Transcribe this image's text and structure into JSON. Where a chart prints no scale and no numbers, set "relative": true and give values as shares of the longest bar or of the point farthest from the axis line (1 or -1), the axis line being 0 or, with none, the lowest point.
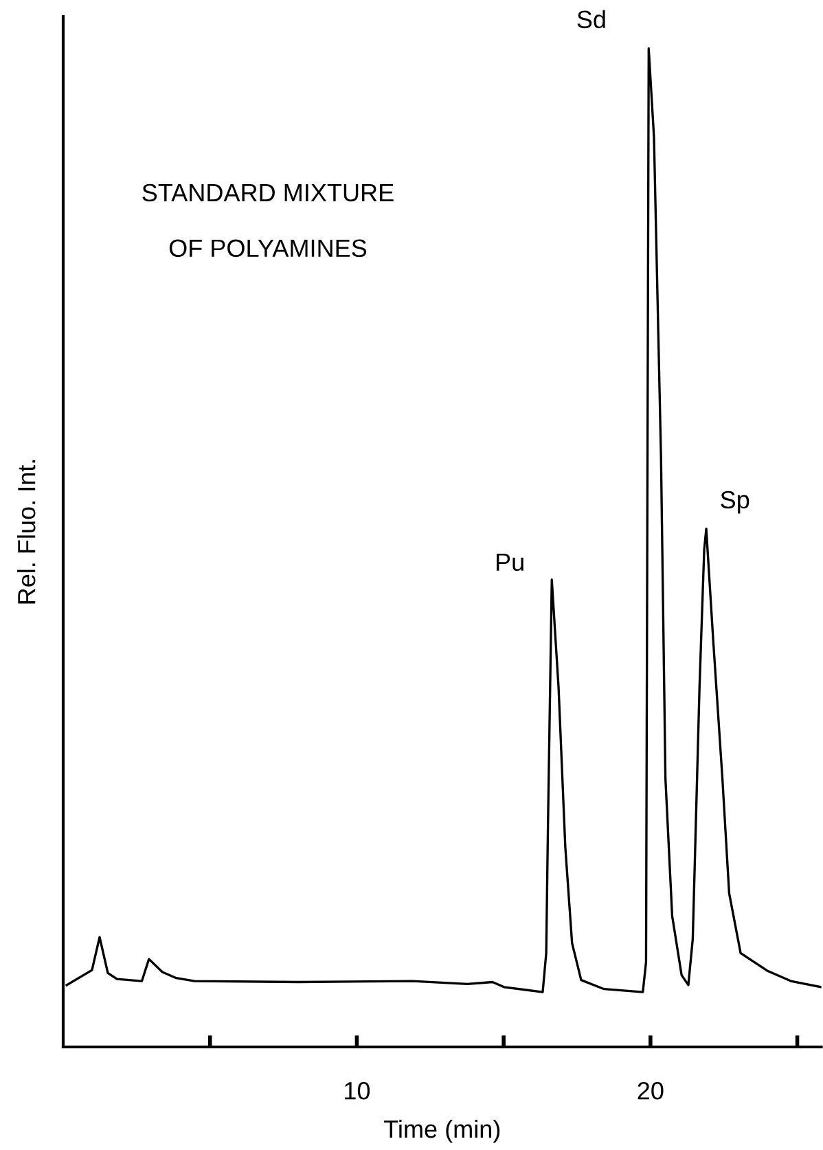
{
  "chart_data": {
    "type": "line",
    "title": "STANDARD MIXTURE\nOF POLYAMINES",
    "xlabel": "Time (min)",
    "ylabel": "Rel. Fluo. Int.",
    "relative": true,
    "xlim": [
      0,
      25.82
    ],
    "xticks": [
      {
        "value": 5,
        "label": null
      },
      10,
      {
        "value": 15,
        "label": null
      },
      20,
      {
        "value": 25,
        "label": null
      }
    ],
    "series": [
      {
        "color": "#000000",
        "x": [
          0.12,
          0.98,
          1.24,
          1.52,
          1.83,
          2.68,
          2.92,
          3.38,
          3.85,
          4.47,
          8.0,
          11.9,
          13.77,
          14.62,
          15.01,
          16.33,
          16.45,
          16.51,
          16.64,
          16.87,
          17.1,
          17.33,
          17.64,
          18.42,
          19.74,
          19.85,
          19.89,
          19.94,
          20.12,
          20.36,
          20.51,
          20.74,
          21.06,
          21.29,
          21.44,
          21.67,
          21.83,
          21.9,
          22.14,
          22.45,
          22.68,
          23.07,
          24.0,
          24.78,
          25.81
        ],
        "values": [
          0.062,
          0.077,
          0.11,
          0.074,
          0.068,
          0.066,
          0.088,
          0.075,
          0.069,
          0.066,
          0.065,
          0.066,
          0.063,
          0.065,
          0.06,
          0.055,
          0.094,
          0.223,
          0.468,
          0.36,
          0.2,
          0.104,
          0.067,
          0.058,
          0.055,
          0.085,
          0.498,
          1.0,
          0.911,
          0.59,
          0.269,
          0.131,
          0.072,
          0.062,
          0.108,
          0.36,
          0.498,
          0.519,
          0.406,
          0.269,
          0.154,
          0.094,
          0.076,
          0.066,
          0.06
        ]
      }
    ],
    "annotations": [
      {
        "text": "Pu",
        "x": 16.64,
        "y": 0.468
      },
      {
        "text": "Sd",
        "x": 19.94,
        "y": 1.0
      },
      {
        "text": "Sp",
        "x": 21.9,
        "y": 0.519
      }
    ],
    "grid": false,
    "legend": false,
    "marker": "none",
    "line_style": "solid"
  }
}
